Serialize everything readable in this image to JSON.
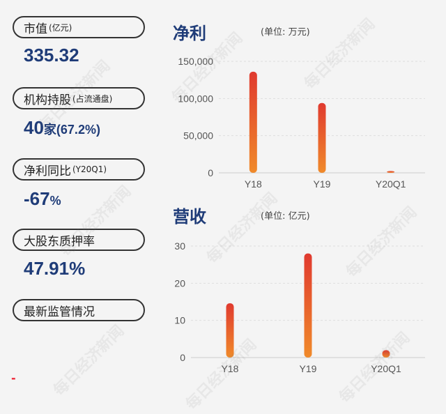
{
  "left_panel": {
    "items": [
      {
        "label": "市值",
        "sub": "(亿元)",
        "value": "335.32",
        "value_suffix": ""
      },
      {
        "label": "机构持股",
        "sub": "(占流通盘)",
        "value": "40",
        "value_suffix": "家(67.2%)"
      },
      {
        "label": "净利同比",
        "sub": "(Y20Q1)",
        "value": "-67",
        "value_suffix": "%"
      },
      {
        "label": "大股东质押率",
        "sub": "",
        "value": "47.91%",
        "value_suffix": ""
      },
      {
        "label": "最新监管情况",
        "sub": "",
        "value": "",
        "value_suffix": ""
      }
    ],
    "footer_mark": "-"
  },
  "watermark": "每日经济新闻",
  "chart_data": [
    {
      "type": "bar",
      "title": "净利",
      "unit": "(单位: 万元)",
      "categories": [
        "Y18",
        "Y19",
        "Y20Q1"
      ],
      "values": [
        136000,
        94000,
        2500
      ],
      "ylim": [
        0,
        150000
      ],
      "yticks": [
        "0",
        "50,000",
        "100,000",
        "150,000"
      ],
      "ytick_values": [
        0,
        50000,
        100000,
        150000
      ],
      "grid": true,
      "bar_color_top": "#e03a2f",
      "bar_color_bottom": "#f08a2a"
    },
    {
      "type": "bar",
      "title": "营收",
      "unit": "(单位: 亿元)",
      "categories": [
        "Y18",
        "Y19",
        "Y20Q1"
      ],
      "values": [
        14.6,
        28,
        2
      ],
      "ylim": [
        0,
        30
      ],
      "yticks": [
        "0",
        "10",
        "20",
        "30"
      ],
      "ytick_values": [
        0,
        10,
        20,
        30
      ],
      "grid": true,
      "bar_color_top": "#e03a2f",
      "bar_color_bottom": "#f08a2a"
    }
  ]
}
